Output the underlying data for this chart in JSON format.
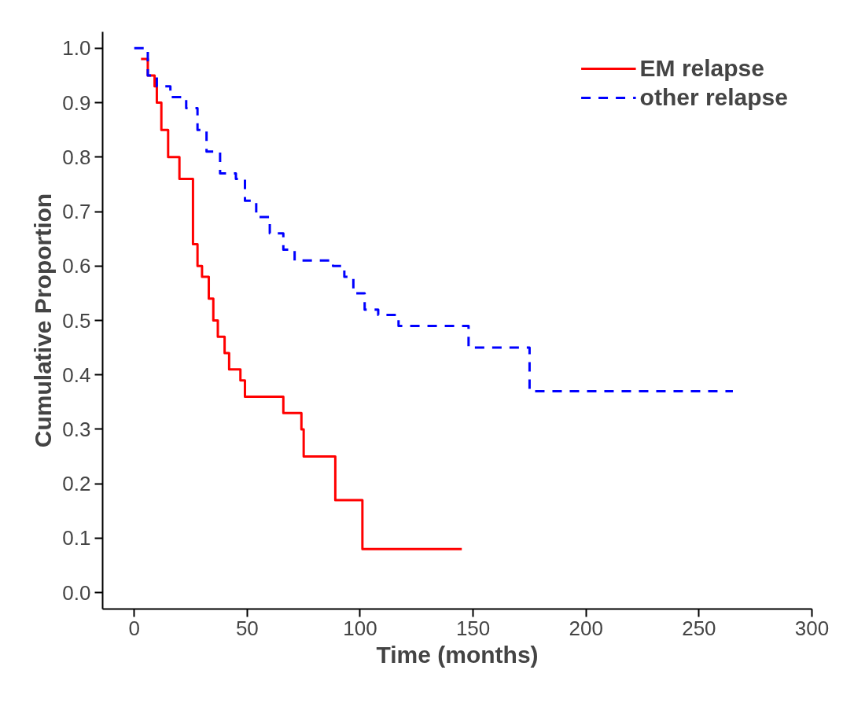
{
  "chart_data": {
    "type": "step",
    "xlabel": "Time (months)",
    "ylabel": "Cumulative Proportion",
    "xlim": [
      -14,
      300
    ],
    "ylim": [
      -0.03,
      1.03
    ],
    "xticks": [
      0,
      50,
      100,
      150,
      200,
      250,
      300
    ],
    "yticks": [
      {
        "value": 0,
        "label": "0.0"
      },
      0.1,
      0.2,
      0.3,
      0.4,
      0.5,
      0.6,
      0.7,
      0.8,
      0.9,
      {
        "value": 1,
        "label": "1.0"
      }
    ],
    "legend": "top right",
    "grid": false,
    "series": [
      {
        "name": "EM relapse",
        "color": "#ff0000",
        "line_style": "solid",
        "x": [
          3,
          6,
          9,
          10,
          12,
          15,
          20,
          26,
          28,
          30,
          33,
          35,
          37,
          40,
          42,
          47,
          49,
          66,
          74,
          75,
          89,
          101,
          145
        ],
        "values": [
          0.98,
          0.95,
          0.93,
          0.9,
          0.85,
          0.8,
          0.76,
          0.64,
          0.6,
          0.58,
          0.54,
          0.5,
          0.47,
          0.44,
          0.41,
          0.39,
          0.36,
          0.33,
          0.3,
          0.25,
          0.17,
          0.08,
          0.08
        ]
      },
      {
        "name": "other relapse",
        "color": "#0000ff",
        "line_style": "dashed",
        "x": [
          0,
          6,
          10,
          16,
          23,
          28,
          32,
          38,
          45,
          49,
          54,
          60,
          66,
          71,
          88,
          93,
          97,
          102,
          108,
          117,
          148,
          175,
          265
        ],
        "values": [
          1.0,
          0.95,
          0.93,
          0.91,
          0.89,
          0.85,
          0.81,
          0.77,
          0.76,
          0.72,
          0.69,
          0.66,
          0.63,
          0.61,
          0.6,
          0.58,
          0.55,
          0.52,
          0.51,
          0.49,
          0.45,
          0.37,
          0.37
        ]
      }
    ]
  }
}
